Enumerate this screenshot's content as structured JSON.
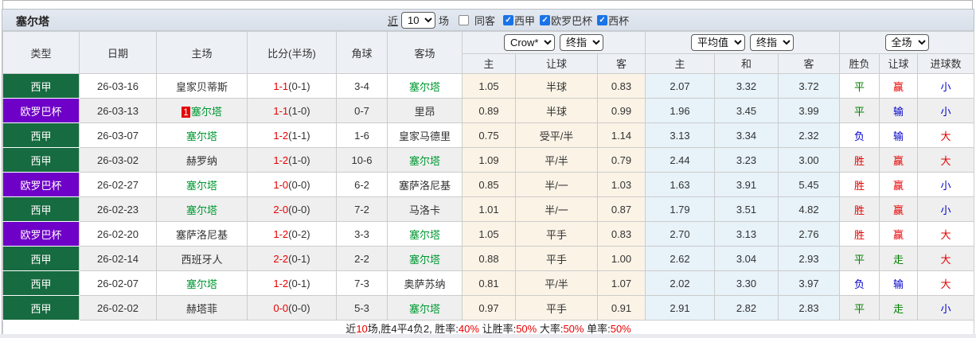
{
  "title": {
    "team": "塞尔塔"
  },
  "toolbar": {
    "recent_label": "近",
    "recent_count": "10",
    "matches_label": "场",
    "same_opponent_label": "同客",
    "same_opponent_checked": false,
    "filters": [
      {
        "label": "西甲",
        "checked": true
      },
      {
        "label": "欧罗巴杯",
        "checked": true
      },
      {
        "label": "西杯",
        "checked": true
      }
    ]
  },
  "header": {
    "left_columns": [
      "类型",
      "日期",
      "主场",
      "比分(半场)",
      "角球",
      "客场"
    ],
    "odds_group": {
      "selects": [
        "Crow*",
        "终指"
      ],
      "columns": [
        "主",
        "让球",
        "客"
      ]
    },
    "avg_group": {
      "selects": [
        "平均值",
        "终指"
      ],
      "columns": [
        "主",
        "和",
        "客"
      ]
    },
    "result_group": {
      "selects": [
        "全场"
      ],
      "columns": [
        "胜负",
        "让球",
        "进球数"
      ]
    }
  },
  "league_colors": {
    "西甲": "#166b40",
    "欧罗巴杯": "#6e00c8"
  },
  "value_colors": {
    "胜": "#e60000",
    "平": "#008000",
    "负": "#0000cc",
    "赢": "#e60000",
    "走": "#008000",
    "输": "#0000cc",
    "大": "#e60000",
    "小": "#0000cc"
  },
  "focus_team_color": "#009933",
  "rows": [
    {
      "league": "西甲",
      "date": "26-03-16",
      "home": "皇家贝蒂斯",
      "score_ft": "1-1",
      "score_ht": "(0-1)",
      "corner": "3-4",
      "away": "塞尔塔",
      "odds_home": "1.05",
      "handicap": "半球",
      "odds_away": "0.83",
      "avg_home": "2.07",
      "avg_draw": "3.32",
      "avg_away": "3.72",
      "result_wdl": "平",
      "result_handicap": "赢",
      "result_goals": "小"
    },
    {
      "league": "欧罗巴杯",
      "date": "26-03-13",
      "home": "塞尔塔",
      "home_badge": "1",
      "score_ft": "1-1",
      "score_ht": "(1-0)",
      "corner": "0-7",
      "away": "里昂",
      "odds_home": "0.89",
      "handicap": "半球",
      "odds_away": "0.99",
      "avg_home": "1.96",
      "avg_draw": "3.45",
      "avg_away": "3.99",
      "result_wdl": "平",
      "result_handicap": "输",
      "result_goals": "小"
    },
    {
      "league": "西甲",
      "date": "26-03-07",
      "home": "塞尔塔",
      "score_ft": "1-2",
      "score_ht": "(1-1)",
      "corner": "1-6",
      "away": "皇家马德里",
      "odds_home": "0.75",
      "handicap": "受平/半",
      "odds_away": "1.14",
      "avg_home": "3.13",
      "avg_draw": "3.34",
      "avg_away": "2.32",
      "result_wdl": "负",
      "result_handicap": "输",
      "result_goals": "大"
    },
    {
      "league": "西甲",
      "date": "26-03-02",
      "home": "赫罗纳",
      "score_ft": "1-2",
      "score_ht": "(1-0)",
      "corner": "10-6",
      "away": "塞尔塔",
      "odds_home": "1.09",
      "handicap": "平/半",
      "odds_away": "0.79",
      "avg_home": "2.44",
      "avg_draw": "3.23",
      "avg_away": "3.00",
      "result_wdl": "胜",
      "result_handicap": "赢",
      "result_goals": "大"
    },
    {
      "league": "欧罗巴杯",
      "date": "26-02-27",
      "home": "塞尔塔",
      "score_ft": "1-0",
      "score_ht": "(0-0)",
      "corner": "6-2",
      "away": "塞萨洛尼基",
      "odds_home": "0.85",
      "handicap": "半/一",
      "odds_away": "1.03",
      "avg_home": "1.63",
      "avg_draw": "3.91",
      "avg_away": "5.45",
      "result_wdl": "胜",
      "result_handicap": "赢",
      "result_goals": "小"
    },
    {
      "league": "西甲",
      "date": "26-02-23",
      "home": "塞尔塔",
      "score_ft": "2-0",
      "score_ht": "(0-0)",
      "corner": "7-2",
      "away": "马洛卡",
      "odds_home": "1.01",
      "handicap": "半/一",
      "odds_away": "0.87",
      "avg_home": "1.79",
      "avg_draw": "3.51",
      "avg_away": "4.82",
      "result_wdl": "胜",
      "result_handicap": "赢",
      "result_goals": "小"
    },
    {
      "league": "欧罗巴杯",
      "date": "26-02-20",
      "home": "塞萨洛尼基",
      "score_ft": "1-2",
      "score_ht": "(0-2)",
      "corner": "3-3",
      "away": "塞尔塔",
      "odds_home": "1.05",
      "handicap": "平手",
      "odds_away": "0.83",
      "avg_home": "2.70",
      "avg_draw": "3.13",
      "avg_away": "2.76",
      "result_wdl": "胜",
      "result_handicap": "赢",
      "result_goals": "大"
    },
    {
      "league": "西甲",
      "date": "26-02-14",
      "home": "西班牙人",
      "score_ft": "2-2",
      "score_ht": "(0-1)",
      "corner": "2-2",
      "away": "塞尔塔",
      "odds_home": "0.88",
      "handicap": "平手",
      "odds_away": "1.00",
      "avg_home": "2.62",
      "avg_draw": "3.04",
      "avg_away": "2.93",
      "result_wdl": "平",
      "result_handicap": "走",
      "result_goals": "大"
    },
    {
      "league": "西甲",
      "date": "26-02-07",
      "home": "塞尔塔",
      "score_ft": "1-2",
      "score_ht": "(0-1)",
      "corner": "7-3",
      "away": "奥萨苏纳",
      "odds_home": "0.81",
      "handicap": "平/半",
      "odds_away": "1.07",
      "avg_home": "2.02",
      "avg_draw": "3.30",
      "avg_away": "3.97",
      "result_wdl": "负",
      "result_handicap": "输",
      "result_goals": "大"
    },
    {
      "league": "西甲",
      "date": "26-02-02",
      "home": "赫塔菲",
      "score_ft": "0-0",
      "score_ht": "(0-0)",
      "corner": "5-3",
      "away": "塞尔塔",
      "odds_home": "0.97",
      "handicap": "平手",
      "odds_away": "0.91",
      "avg_home": "2.91",
      "avg_draw": "2.82",
      "avg_away": "2.83",
      "result_wdl": "平",
      "result_handicap": "走",
      "result_goals": "小"
    }
  ],
  "footer": {
    "segments": [
      {
        "text": "近",
        "red": false
      },
      {
        "text": "10",
        "red": true
      },
      {
        "text": "场,胜4平4负2, 胜率:",
        "red": false
      },
      {
        "text": "40%",
        "red": true
      },
      {
        "text": " 让胜率:",
        "red": false
      },
      {
        "text": "50%",
        "red": true
      },
      {
        "text": " 大率:",
        "red": false
      },
      {
        "text": "50%",
        "red": true
      },
      {
        "text": " 单率:",
        "red": false
      },
      {
        "text": "50%",
        "red": true
      }
    ]
  }
}
